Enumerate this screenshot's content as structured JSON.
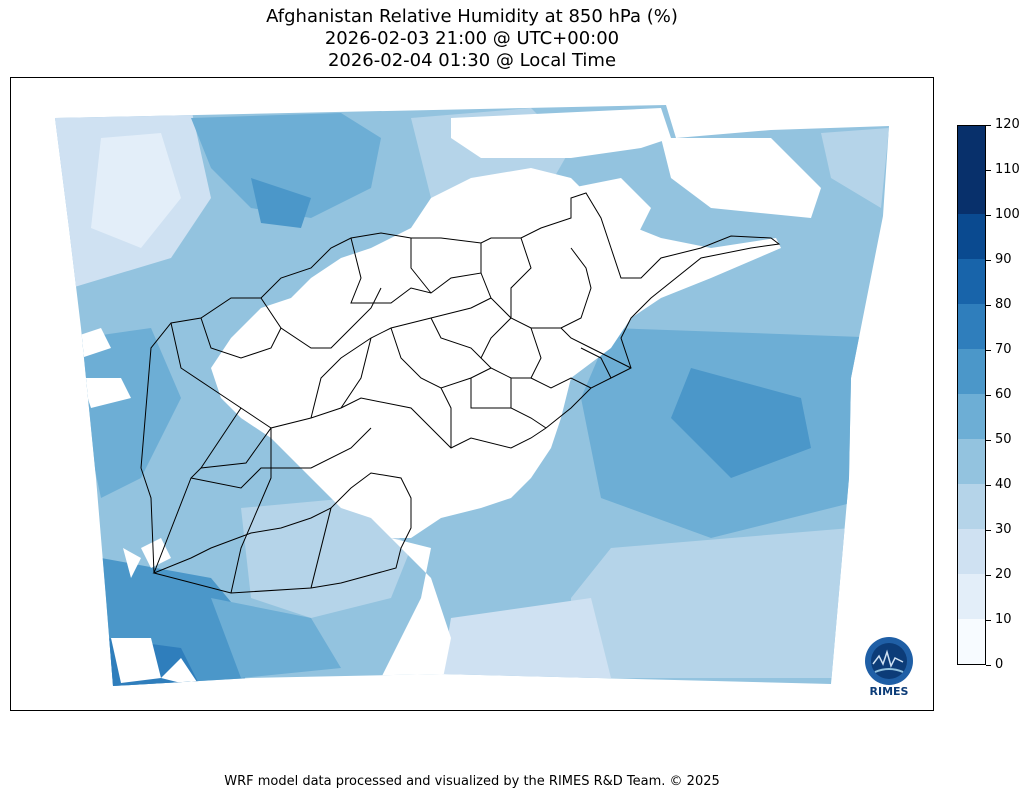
{
  "title": {
    "line1": "Afghanistan Relative Humidity at 850 hPa (%)",
    "line2": "2026-02-03 21:00 @ UTC+00:00",
    "line3": "2026-02-04 01:30 @ Local Time"
  },
  "colorbar": {
    "ticks": [
      "0",
      "10",
      "20",
      "30",
      "40",
      "50",
      "60",
      "70",
      "80",
      "90",
      "100",
      "110",
      "120"
    ],
    "colors": [
      "#f7fbff",
      "#e3eef9",
      "#cfe1f2",
      "#b5d4e9",
      "#93c3df",
      "#6daed5",
      "#4b97c9",
      "#2f7ebc",
      "#1864aa",
      "#0a4a90",
      "#08306b",
      "#08306b"
    ]
  },
  "map": {
    "region": "Afghanistan",
    "variable": "Relative Humidity",
    "level": "850 hPa",
    "units": "%"
  },
  "logo": {
    "text": "RIMES"
  },
  "footer": {
    "credit": "WRF model data processed and visualized by the RIMES R&D Team. © 2025"
  }
}
